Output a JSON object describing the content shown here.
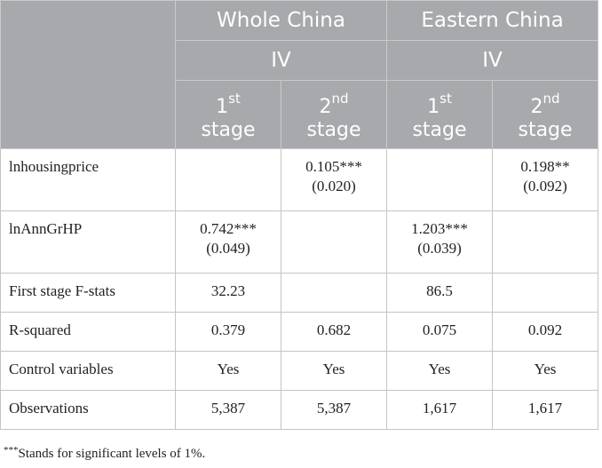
{
  "header": {
    "groups": [
      "Whole China",
      "Eastern China"
    ],
    "iv": [
      "IV",
      "IV"
    ],
    "stages": [
      {
        "num": "1",
        "sup": "st",
        "word": "stage"
      },
      {
        "num": "2",
        "sup": "nd",
        "word": "stage"
      },
      {
        "num": "1",
        "sup": "st",
        "word": "stage"
      },
      {
        "num": "2",
        "sup": "nd",
        "word": "stage"
      }
    ]
  },
  "rows": [
    {
      "label": "lnhousingprice",
      "cells": [
        {
          "coef": "",
          "se": ""
        },
        {
          "coef": "0.105***",
          "se": "(0.020)"
        },
        {
          "coef": "",
          "se": ""
        },
        {
          "coef": "0.198**",
          "se": "(0.092)"
        }
      ]
    },
    {
      "label": "lnAnnGrHP",
      "cells": [
        {
          "coef": "0.742***",
          "se": "(0.049)"
        },
        {
          "coef": "",
          "se": ""
        },
        {
          "coef": "1.203***",
          "se": "(0.039)"
        },
        {
          "coef": "",
          "se": ""
        }
      ]
    },
    {
      "label": "First stage F-stats",
      "cells": [
        "32.23",
        "",
        "86.5",
        ""
      ]
    },
    {
      "label": "R-squared",
      "cells": [
        "0.379",
        "0.682",
        "0.075",
        "0.092"
      ]
    },
    {
      "label": "Control variables",
      "cells": [
        "Yes",
        "Yes",
        "Yes",
        "Yes"
      ]
    },
    {
      "label": "Observations",
      "cells": [
        "5,387",
        "5,387",
        "1,617",
        "1,617"
      ]
    }
  ],
  "footnote": {
    "mark": "***",
    "text": "Stands for significant levels of 1%."
  }
}
